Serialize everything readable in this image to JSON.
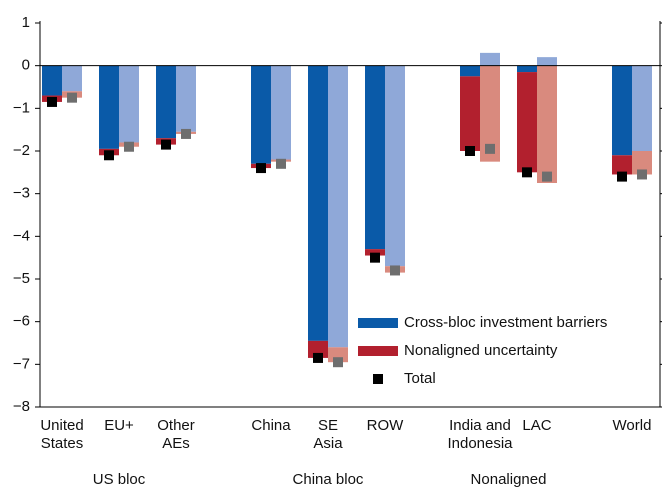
{
  "chart_data": {
    "type": "bar",
    "groups": [
      {
        "name": "US bloc",
        "categories": [
          "United\nStates",
          "EU+",
          "Other\nAEs"
        ]
      },
      {
        "name": "China bloc",
        "categories": [
          "China",
          "SE\nAsia",
          "ROW"
        ]
      },
      {
        "name": "Nonaligned",
        "categories": [
          "India and\nIndonesia",
          "LAC"
        ]
      },
      {
        "name": null,
        "categories": [
          "World"
        ]
      }
    ],
    "series": [
      {
        "name": "Cross-bloc investment barriers",
        "color": "#0a5aa8",
        "alt_color": "#8fa8d8",
        "values": [
          -0.7,
          -1.95,
          -1.7,
          -2.3,
          -6.45,
          -4.3,
          -0.25,
          -0.15,
          -2.1
        ],
        "alt_values": [
          -0.6,
          -1.8,
          -1.55,
          -2.2,
          -6.6,
          -4.7,
          0.3,
          0.2,
          -2.0
        ]
      },
      {
        "name": "Nonaligned uncertainty",
        "color": "#b2202e",
        "alt_color": "#d98a7e",
        "values": [
          -0.15,
          -0.15,
          -0.15,
          -0.1,
          -0.4,
          -0.15,
          -1.75,
          -2.35,
          -0.45
        ],
        "alt_values": [
          -0.15,
          -0.1,
          -0.05,
          -0.05,
          -0.35,
          -0.15,
          -2.25,
          -2.75,
          -0.55
        ]
      },
      {
        "name": "Total",
        "color": "#000000",
        "alt_color": "#6e6e6e",
        "values": [
          -0.85,
          -2.1,
          -1.85,
          -2.4,
          -6.85,
          -4.5,
          -2.0,
          -2.5,
          -2.6
        ],
        "alt_values": [
          -0.75,
          -1.9,
          -1.6,
          -2.3,
          -6.95,
          -4.8,
          -1.95,
          -2.6,
          -2.55
        ]
      }
    ],
    "ylim": [
      -8,
      1
    ],
    "yticks": [
      {
        "value": -8,
        "label": "−8"
      },
      {
        "value": -7,
        "label": "−7"
      },
      {
        "value": -6,
        "label": "−6"
      },
      {
        "value": -5,
        "label": "−5"
      },
      {
        "value": -4,
        "label": "−4"
      },
      {
        "value": -3,
        "label": "−3"
      },
      {
        "value": -2,
        "label": "−2"
      },
      {
        "value": -1,
        "label": "−1"
      },
      0,
      1
    ]
  }
}
